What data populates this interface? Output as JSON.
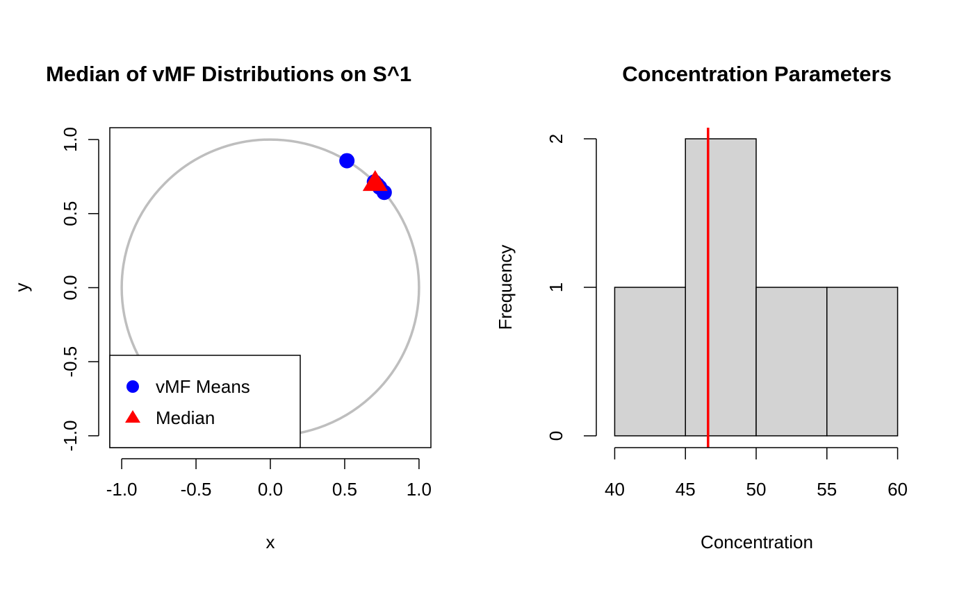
{
  "chart_data": [
    {
      "type": "scatter",
      "title": "Median of vMF Distributions on S^1",
      "xlabel": "x",
      "ylabel": "y",
      "xlim": [
        -1.08,
        1.08
      ],
      "ylim": [
        -1.08,
        1.08
      ],
      "x_ticks": [
        -1.0,
        -0.5,
        0.0,
        0.5,
        1.0
      ],
      "x_tick_labels": [
        "-1.0",
        "-0.5",
        "0.0",
        "0.5",
        "1.0"
      ],
      "y_ticks": [
        -1.0,
        -0.5,
        0.0,
        0.5,
        1.0
      ],
      "y_tick_labels": [
        "-1.0",
        "-0.5",
        "0.0",
        "0.5",
        "1.0"
      ],
      "circle": {
        "radius": 1,
        "color": "#bebebe"
      },
      "series": [
        {
          "name": "vMF Means",
          "marker": "circle",
          "color": "#0000ff",
          "points": [
            {
              "x": 0.515,
              "y": 0.857
            },
            {
              "x": 0.7,
              "y": 0.714
            },
            {
              "x": 0.72,
              "y": 0.694
            },
            {
              "x": 0.735,
              "y": 0.678
            },
            {
              "x": 0.766,
              "y": 0.643
            }
          ]
        },
        {
          "name": "Median",
          "marker": "triangle",
          "color": "#ff0000",
          "points": [
            {
              "x": 0.705,
              "y": 0.709
            }
          ]
        }
      ],
      "legend": {
        "position": "bottom-left",
        "entries": [
          {
            "label": "vMF Means",
            "marker": "circle",
            "color": "#0000ff"
          },
          {
            "label": "Median",
            "marker": "triangle",
            "color": "#ff0000"
          }
        ]
      }
    },
    {
      "type": "bar",
      "subtype": "histogram",
      "title": "Concentration Parameters",
      "xlabel": "Concentration",
      "ylabel": "Frequency",
      "bins": [
        {
          "from": 40,
          "to": 45,
          "count": 1
        },
        {
          "from": 45,
          "to": 50,
          "count": 2
        },
        {
          "from": 50,
          "to": 55,
          "count": 1
        },
        {
          "from": 55,
          "to": 60,
          "count": 1
        }
      ],
      "xlim": [
        40,
        60
      ],
      "ylim": [
        0,
        2.08
      ],
      "x_ticks": [
        40,
        45,
        50,
        55,
        60
      ],
      "x_tick_labels": [
        "40",
        "45",
        "50",
        "55",
        "60"
      ],
      "y_ticks": [
        0,
        1,
        2
      ],
      "y_tick_labels": [
        "0",
        "1",
        "2"
      ],
      "bar_color": "#d3d3d3",
      "vline": {
        "x": 46.6,
        "color": "#ff0000"
      }
    }
  ]
}
